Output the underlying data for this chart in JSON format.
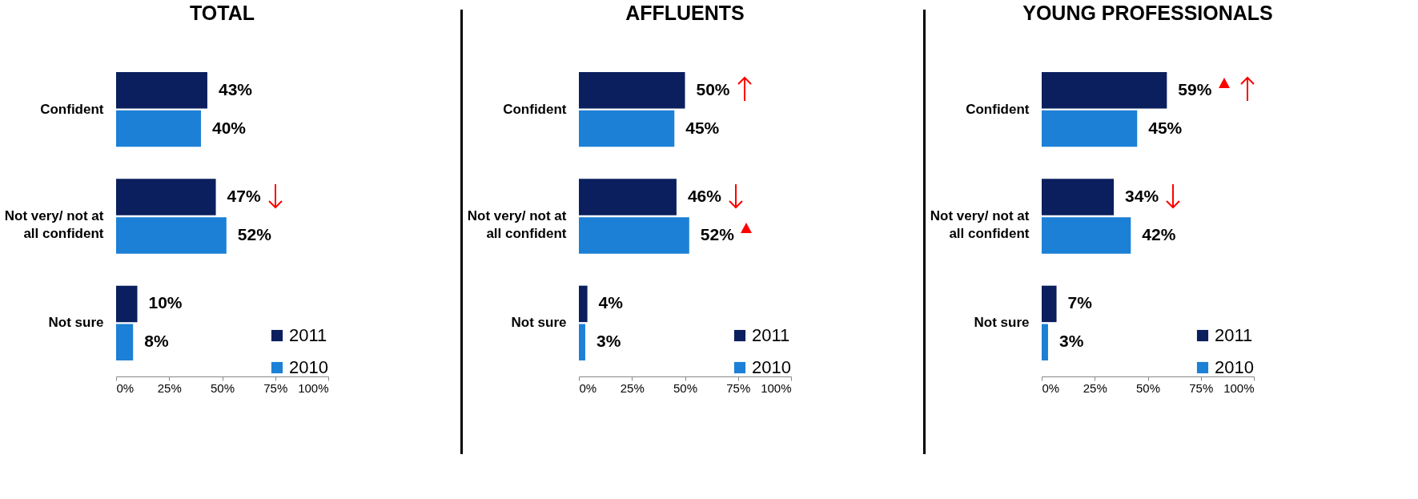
{
  "chart_data": [
    {
      "type": "bar",
      "orientation": "horizontal",
      "title": "TOTAL",
      "categories": [
        "Confident",
        "Not very/ not at all confident",
        "Not sure"
      ],
      "series": [
        {
          "name": "2011",
          "color": "#0b1f5e",
          "values": [
            43,
            47,
            10
          ],
          "value_labels": [
            "43%",
            "47%",
            "10%"
          ]
        },
        {
          "name": "2010",
          "color": "#1c80d6",
          "values": [
            40,
            52,
            8
          ],
          "value_labels": [
            "40%",
            "52%",
            "8%"
          ]
        }
      ],
      "xlim": [
        0,
        100
      ],
      "xticks": [
        {
          "value": 0,
          "label": "0%"
        },
        {
          "value": 25,
          "label": "25%"
        },
        {
          "value": 50,
          "label": "50%"
        },
        {
          "value": 75,
          "label": "75%"
        },
        {
          "value": 100,
          "label": "100%"
        }
      ],
      "legend": "bottom right",
      "grid": false
    },
    {
      "type": "bar",
      "orientation": "horizontal",
      "title": "AFFLUENTS",
      "categories": [
        "Confident",
        "Not very/ not at all confident",
        "Not sure"
      ],
      "series": [
        {
          "name": "2011",
          "color": "#0b1f5e",
          "values": [
            50,
            46,
            4
          ],
          "value_labels": [
            "50%",
            "46%",
            "4%"
          ]
        },
        {
          "name": "2010",
          "color": "#1c80d6",
          "values": [
            45,
            52,
            3
          ],
          "value_labels": [
            "45%",
            "52%",
            "3%"
          ]
        }
      ],
      "xlim": [
        0,
        100
      ],
      "xticks": [
        {
          "value": 0,
          "label": "0%"
        },
        {
          "value": 25,
          "label": "25%"
        },
        {
          "value": 50,
          "label": "50%"
        },
        {
          "value": 75,
          "label": "75%"
        },
        {
          "value": 100,
          "label": "100%"
        }
      ],
      "legend": "bottom right",
      "grid": false
    },
    {
      "type": "bar",
      "orientation": "horizontal",
      "title": "YOUNG PROFESSIONALS",
      "categories": [
        "Confident",
        "Not very/ not at all confident",
        "Not sure"
      ],
      "series": [
        {
          "name": "2011",
          "color": "#0b1f5e",
          "values": [
            59,
            34,
            7
          ],
          "value_labels": [
            "59%",
            "34%",
            "7%"
          ]
        },
        {
          "name": "2010",
          "color": "#1c80d6",
          "values": [
            45,
            42,
            3
          ],
          "value_labels": [
            "45%",
            "42%",
            "3%"
          ]
        }
      ],
      "xlim": [
        0,
        100
      ],
      "xticks": [
        {
          "value": 0,
          "label": "0%"
        },
        {
          "value": 25,
          "label": "25%"
        },
        {
          "value": 50,
          "label": "50%"
        },
        {
          "value": 75,
          "label": "75%"
        },
        {
          "value": 100,
          "label": "100%"
        }
      ],
      "legend": "bottom right",
      "grid": false
    }
  ]
}
